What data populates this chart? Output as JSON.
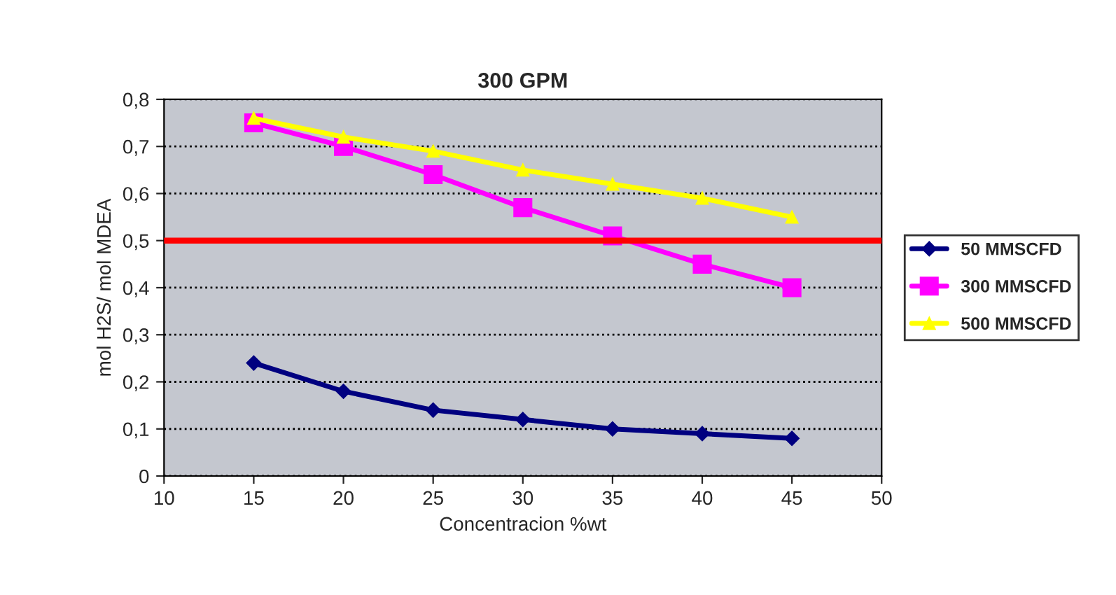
{
  "chart_data": {
    "type": "line",
    "title": "300 GPM",
    "xlabel": "Concentracion %wt",
    "ylabel": "mol H2S/ mol MDEA",
    "x": [
      15,
      20,
      25,
      30,
      35,
      40,
      45
    ],
    "series": [
      {
        "name": "50 MMSCFD",
        "color": "#000080",
        "marker": "diamond",
        "values": [
          0.24,
          0.18,
          0.14,
          0.12,
          0.1,
          0.09,
          0.08
        ]
      },
      {
        "name": "300 MMSCFD",
        "color": "#ff00ff",
        "marker": "square",
        "values": [
          0.75,
          0.7,
          0.64,
          0.57,
          0.51,
          0.45,
          0.4
        ]
      },
      {
        "name": "500 MMSCFD",
        "color": "#ffff00",
        "marker": "triangle",
        "values": [
          0.76,
          0.72,
          0.69,
          0.65,
          0.62,
          0.59,
          0.55
        ]
      }
    ],
    "xlim": [
      10,
      50
    ],
    "xticks": [
      10,
      15,
      20,
      25,
      30,
      35,
      40,
      45,
      50
    ],
    "ylim": [
      0,
      0.8
    ],
    "yticks": [
      {
        "value": 0,
        "label": "0"
      },
      {
        "value": 0.1,
        "label": "0,1"
      },
      {
        "value": 0.2,
        "label": "0,2"
      },
      {
        "value": 0.3,
        "label": "0,3"
      },
      {
        "value": 0.4,
        "label": "0,4"
      },
      {
        "value": 0.5,
        "label": "0,5"
      },
      {
        "value": 0.6,
        "label": "0,6"
      },
      {
        "value": 0.7,
        "label": "0,7"
      },
      {
        "value": 0.8,
        "label": "0,8"
      }
    ],
    "ref_lines": [
      {
        "axis": "y",
        "value": 0.5,
        "color": "#ff0000"
      }
    ],
    "grid": "y",
    "legend": "right"
  }
}
